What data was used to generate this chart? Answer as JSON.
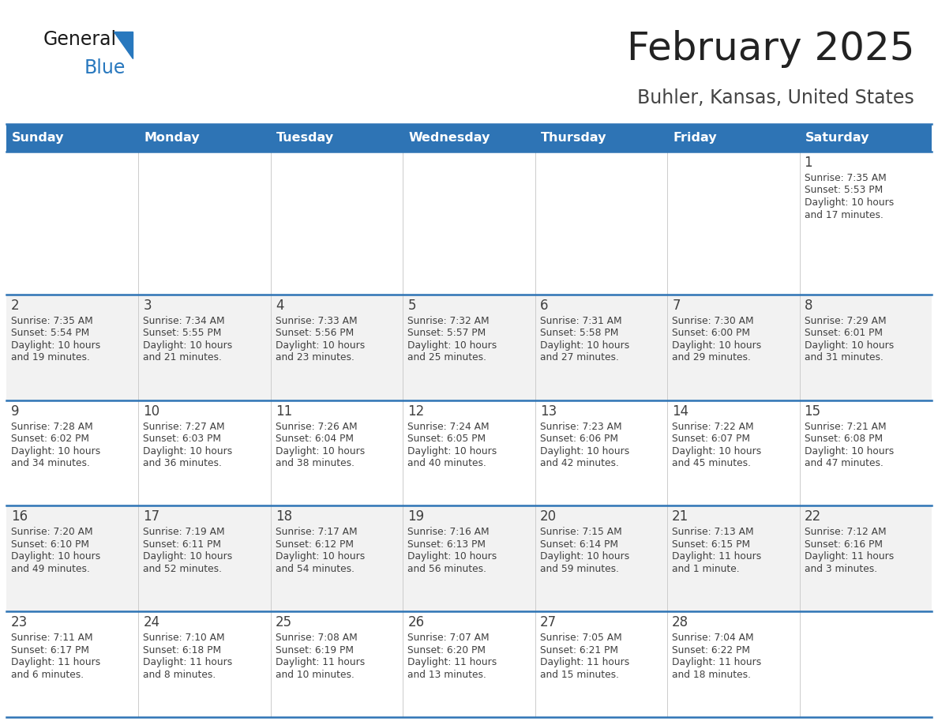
{
  "title": "February 2025",
  "subtitle": "Buhler, Kansas, United States",
  "header_bg": "#2E74B5",
  "header_text_color": "#FFFFFF",
  "day_names": [
    "Sunday",
    "Monday",
    "Tuesday",
    "Wednesday",
    "Thursday",
    "Friday",
    "Saturday"
  ],
  "cell_bg_white": "#FFFFFF",
  "cell_bg_gray": "#F2F2F2",
  "separator_color": "#2E74B5",
  "text_color": "#404040",
  "date_color": "#404040",
  "logo_general_color": "#1A1A1A",
  "logo_blue_color": "#2878BE",
  "days": [
    {
      "date": 1,
      "col": 6,
      "row": 0,
      "sunrise": "7:35 AM",
      "sunset": "5:53 PM",
      "daylight": "10 hours and 17 minutes."
    },
    {
      "date": 2,
      "col": 0,
      "row": 1,
      "sunrise": "7:35 AM",
      "sunset": "5:54 PM",
      "daylight": "10 hours and 19 minutes."
    },
    {
      "date": 3,
      "col": 1,
      "row": 1,
      "sunrise": "7:34 AM",
      "sunset": "5:55 PM",
      "daylight": "10 hours and 21 minutes."
    },
    {
      "date": 4,
      "col": 2,
      "row": 1,
      "sunrise": "7:33 AM",
      "sunset": "5:56 PM",
      "daylight": "10 hours and 23 minutes."
    },
    {
      "date": 5,
      "col": 3,
      "row": 1,
      "sunrise": "7:32 AM",
      "sunset": "5:57 PM",
      "daylight": "10 hours and 25 minutes."
    },
    {
      "date": 6,
      "col": 4,
      "row": 1,
      "sunrise": "7:31 AM",
      "sunset": "5:58 PM",
      "daylight": "10 hours and 27 minutes."
    },
    {
      "date": 7,
      "col": 5,
      "row": 1,
      "sunrise": "7:30 AM",
      "sunset": "6:00 PM",
      "daylight": "10 hours and 29 minutes."
    },
    {
      "date": 8,
      "col": 6,
      "row": 1,
      "sunrise": "7:29 AM",
      "sunset": "6:01 PM",
      "daylight": "10 hours and 31 minutes."
    },
    {
      "date": 9,
      "col": 0,
      "row": 2,
      "sunrise": "7:28 AM",
      "sunset": "6:02 PM",
      "daylight": "10 hours and 34 minutes."
    },
    {
      "date": 10,
      "col": 1,
      "row": 2,
      "sunrise": "7:27 AM",
      "sunset": "6:03 PM",
      "daylight": "10 hours and 36 minutes."
    },
    {
      "date": 11,
      "col": 2,
      "row": 2,
      "sunrise": "7:26 AM",
      "sunset": "6:04 PM",
      "daylight": "10 hours and 38 minutes."
    },
    {
      "date": 12,
      "col": 3,
      "row": 2,
      "sunrise": "7:24 AM",
      "sunset": "6:05 PM",
      "daylight": "10 hours and 40 minutes."
    },
    {
      "date": 13,
      "col": 4,
      "row": 2,
      "sunrise": "7:23 AM",
      "sunset": "6:06 PM",
      "daylight": "10 hours and 42 minutes."
    },
    {
      "date": 14,
      "col": 5,
      "row": 2,
      "sunrise": "7:22 AM",
      "sunset": "6:07 PM",
      "daylight": "10 hours and 45 minutes."
    },
    {
      "date": 15,
      "col": 6,
      "row": 2,
      "sunrise": "7:21 AM",
      "sunset": "6:08 PM",
      "daylight": "10 hours and 47 minutes."
    },
    {
      "date": 16,
      "col": 0,
      "row": 3,
      "sunrise": "7:20 AM",
      "sunset": "6:10 PM",
      "daylight": "10 hours and 49 minutes."
    },
    {
      "date": 17,
      "col": 1,
      "row": 3,
      "sunrise": "7:19 AM",
      "sunset": "6:11 PM",
      "daylight": "10 hours and 52 minutes."
    },
    {
      "date": 18,
      "col": 2,
      "row": 3,
      "sunrise": "7:17 AM",
      "sunset": "6:12 PM",
      "daylight": "10 hours and 54 minutes."
    },
    {
      "date": 19,
      "col": 3,
      "row": 3,
      "sunrise": "7:16 AM",
      "sunset": "6:13 PM",
      "daylight": "10 hours and 56 minutes."
    },
    {
      "date": 20,
      "col": 4,
      "row": 3,
      "sunrise": "7:15 AM",
      "sunset": "6:14 PM",
      "daylight": "10 hours and 59 minutes."
    },
    {
      "date": 21,
      "col": 5,
      "row": 3,
      "sunrise": "7:13 AM",
      "sunset": "6:15 PM",
      "daylight": "11 hours and 1 minute."
    },
    {
      "date": 22,
      "col": 6,
      "row": 3,
      "sunrise": "7:12 AM",
      "sunset": "6:16 PM",
      "daylight": "11 hours and 3 minutes."
    },
    {
      "date": 23,
      "col": 0,
      "row": 4,
      "sunrise": "7:11 AM",
      "sunset": "6:17 PM",
      "daylight": "11 hours and 6 minutes."
    },
    {
      "date": 24,
      "col": 1,
      "row": 4,
      "sunrise": "7:10 AM",
      "sunset": "6:18 PM",
      "daylight": "11 hours and 8 minutes."
    },
    {
      "date": 25,
      "col": 2,
      "row": 4,
      "sunrise": "7:08 AM",
      "sunset": "6:19 PM",
      "daylight": "11 hours and 10 minutes."
    },
    {
      "date": 26,
      "col": 3,
      "row": 4,
      "sunrise": "7:07 AM",
      "sunset": "6:20 PM",
      "daylight": "11 hours and 13 minutes."
    },
    {
      "date": 27,
      "col": 4,
      "row": 4,
      "sunrise": "7:05 AM",
      "sunset": "6:21 PM",
      "daylight": "11 hours and 15 minutes."
    },
    {
      "date": 28,
      "col": 5,
      "row": 4,
      "sunrise": "7:04 AM",
      "sunset": "6:22 PM",
      "daylight": "11 hours and 18 minutes."
    }
  ]
}
